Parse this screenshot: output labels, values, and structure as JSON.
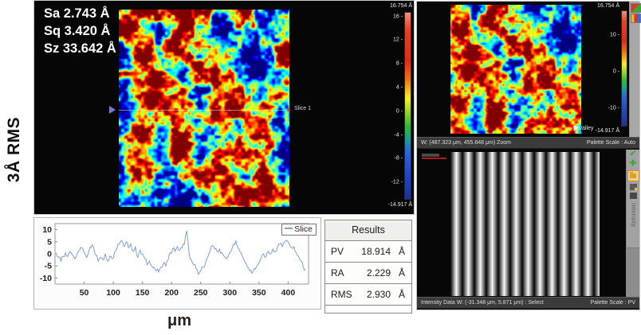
{
  "page": {
    "side_label": "3Å RMS",
    "xunit_label": "μm"
  },
  "colors": {
    "slice_line": "#7fa0cf",
    "status_bg": "#3b3b3b",
    "panel_black": "#060606",
    "icon_green": "#3aa832",
    "icon_orange": "#e08a10",
    "watermark_red": "#b01c12"
  },
  "main_view": {
    "annotations": [
      "Sa 2.743 Å",
      "Sq 3.420 Å",
      "Sz 33.642 Å"
    ],
    "slice_marker_label": "Slice 1"
  },
  "results_table": {
    "title": "Results",
    "rows": [
      {
        "name": "PV",
        "value": "18.914",
        "unit": "Å"
      },
      {
        "name": "RA",
        "value": "2.229",
        "unit": "Å"
      },
      {
        "name": "RMS",
        "value": "2.930",
        "unit": "Å"
      }
    ]
  },
  "zoom_view": {
    "valley_label": "Valley",
    "status_left": "W: (487.323 μm, 455.848 μm)    Zoom",
    "status_right": "Palette Scale : Auto"
  },
  "intensity_view": {
    "vertical_label": "Intensity",
    "status_left": "Intensity Data    W: (-31.348 μm, 5.871 μm)  :  Select",
    "status_right": "Palette Scale : PV",
    "toolbar_icons": [
      "checkmark-icon",
      "move-arrows-icon",
      "folder-icon",
      "snapshot-icon",
      "mask-icon"
    ]
  },
  "chart_data": [
    {
      "type": "heatmap",
      "name": "surface-height-map",
      "unit": "Å",
      "zmin": -14.917,
      "zmax": 16.754,
      "colormap": "jet",
      "colorbar_top_label": "16.754 Å",
      "colorbar_bottom_label": "-14.917 Å",
      "colorbar_ticks": [
        16,
        12,
        8,
        4,
        0,
        -4,
        -8,
        -12
      ],
      "stats": {
        "Sa": "2.743 Å",
        "Sq": "3.420 Å",
        "Sz": "33.642 Å"
      },
      "slice_label": "Slice 1"
    },
    {
      "type": "heatmap",
      "name": "zoom-height-map",
      "unit": "Å",
      "zmin": -14.917,
      "zmax": 16.754,
      "colormap": "jet",
      "colorbar_top_label": "16.754 Å",
      "colorbar_bottom_label": "-14.917 Å",
      "colorbar_ticks": [
        10,
        0,
        -10
      ],
      "marker": "Valley"
    },
    {
      "type": "line",
      "name": "slice-profile",
      "legend": "Slice",
      "xlabel": "μm",
      "ylabel": "",
      "xlim": [
        0,
        435
      ],
      "ylim": [
        -12.5,
        12.5
      ],
      "xticks": [
        50,
        100,
        150,
        200,
        250,
        300,
        350,
        400
      ],
      "yticks": [
        10,
        5,
        0,
        -5,
        -10
      ],
      "line_color": "#7fa0cf",
      "x": [
        2,
        6,
        10,
        14,
        18,
        22,
        26,
        30,
        34,
        38,
        42,
        46,
        50,
        54,
        58,
        62,
        66,
        70,
        74,
        78,
        82,
        86,
        90,
        94,
        98,
        102,
        106,
        110,
        114,
        118,
        122,
        126,
        130,
        134,
        138,
        142,
        146,
        150,
        154,
        158,
        162,
        166,
        170,
        174,
        178,
        182,
        186,
        190,
        194,
        198,
        202,
        206,
        210,
        214,
        218,
        222,
        226,
        230,
        234,
        238,
        242,
        246,
        250,
        254,
        258,
        262,
        266,
        270,
        274,
        278,
        282,
        286,
        290,
        294,
        298,
        302,
        306,
        310,
        314,
        318,
        322,
        326,
        330,
        334,
        338,
        342,
        346,
        350,
        354,
        358,
        362,
        366,
        370,
        374,
        378,
        382,
        386,
        390,
        394,
        398,
        402,
        406,
        410,
        414,
        418,
        422,
        426,
        430
      ],
      "y": [
        -0.5,
        -1.5,
        -3,
        -1,
        0.5,
        -1,
        1,
        -0.5,
        -2,
        0,
        1.5,
        2.5,
        0.5,
        -1.5,
        1,
        2.5,
        3,
        -0.5,
        -3,
        -1.5,
        -2.5,
        0,
        -3,
        -1,
        -2,
        0.5,
        2,
        4,
        5.5,
        3,
        5,
        2.5,
        4,
        1,
        3,
        -1.5,
        1.5,
        0,
        -2,
        -4.5,
        -3,
        -5,
        -5.5,
        -7,
        -7.5,
        -5.5,
        -4,
        -5,
        -2.5,
        0.5,
        2,
        1,
        3,
        1.5,
        2.5,
        4,
        9.5,
        0,
        -2.5,
        -4.5,
        -6,
        -8.5,
        -7,
        -5.5,
        -4,
        -1.5,
        1,
        3.5,
        2,
        1,
        2,
        0.5,
        -1,
        -2,
        -0.5,
        1,
        4,
        5.5,
        2.5,
        0.5,
        -1.5,
        -3.5,
        -5.5,
        -7,
        -8,
        -6,
        -5,
        -3.5,
        -1.5,
        0,
        -1,
        1,
        0,
        2,
        1,
        3,
        4,
        3,
        5,
        5.5,
        4,
        2.5,
        3,
        0.5,
        -1,
        -3,
        -5.5,
        -6.5
      ]
    },
    {
      "type": "heatmap",
      "name": "intensity-fringes",
      "description": "vertical interference fringe pattern, ~12 bright fringes",
      "palette": "grayscale"
    }
  ]
}
